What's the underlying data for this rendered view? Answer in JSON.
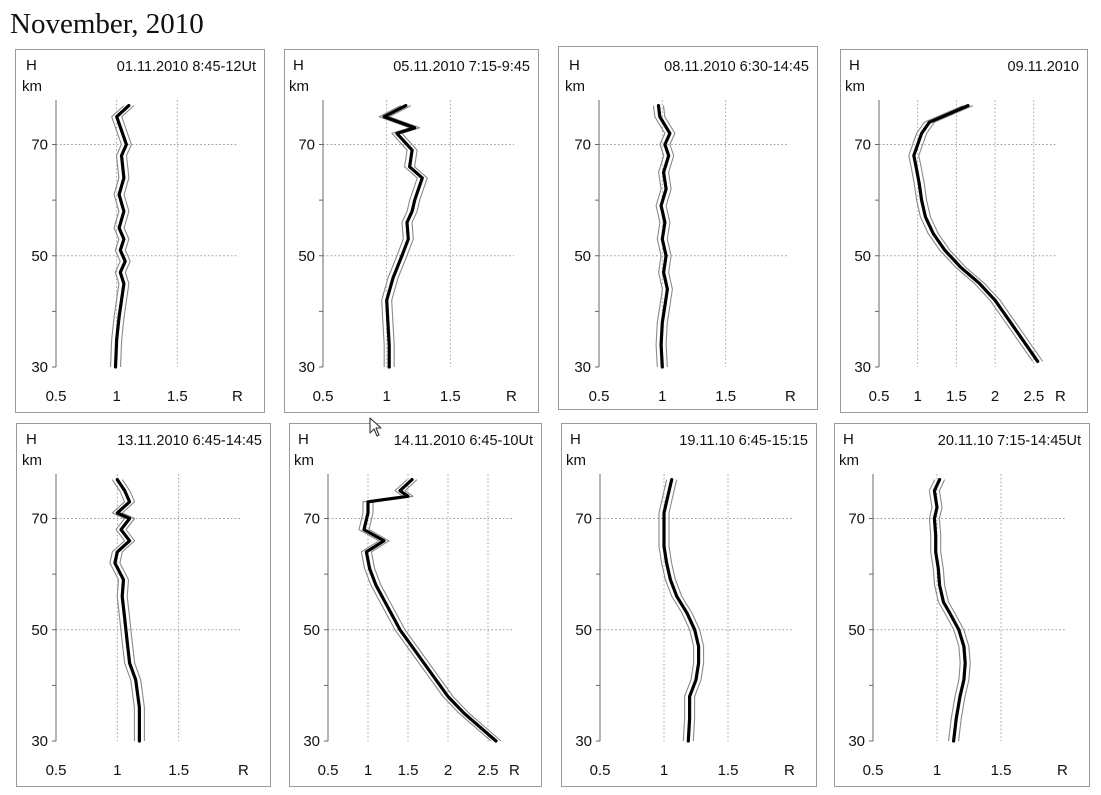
{
  "figure_title": "November, 2010",
  "chart_data": [
    {
      "type": "line",
      "title": "01.11.2010 8:45-12Ut",
      "ylabel": "H",
      "yunit": "km",
      "xlabel": "R",
      "xlim": [
        0.5,
        2.0
      ],
      "ylim": [
        30,
        78
      ],
      "xticks": [
        "0.5",
        "1",
        "1.5"
      ],
      "yticks": [
        "30",
        "50",
        "70"
      ],
      "series": [
        {
          "x": [
            1.1,
            1.0,
            1.08,
            1.04,
            1.06,
            1.02,
            1.06,
            1.02,
            1.06,
            1.03,
            1.07,
            1.03,
            1.06,
            1.04,
            1.02,
            1.0,
            0.99
          ],
          "y": [
            77,
            75,
            70,
            68,
            64,
            61,
            58,
            55,
            53,
            51,
            49,
            47,
            45,
            42,
            39,
            35,
            30
          ]
        }
      ]
    },
    {
      "type": "line",
      "title": "05.11.2010 7:15-9:45",
      "ylabel": "H",
      "yunit": "km",
      "xlabel": "R",
      "xlim": [
        0.5,
        2.0
      ],
      "ylim": [
        30,
        78
      ],
      "xticks": [
        "0.5",
        "1",
        "1.5"
      ],
      "yticks": [
        "30",
        "50",
        "70"
      ],
      "series": [
        {
          "x": [
            1.15,
            0.98,
            1.22,
            1.08,
            1.2,
            1.18,
            1.28,
            1.25,
            1.22,
            1.2,
            1.16,
            1.17,
            1.12,
            1.05,
            1.0,
            1.01,
            1.02,
            1.02
          ],
          "y": [
            77,
            75,
            73,
            72,
            69,
            66,
            64,
            62,
            60,
            58,
            56,
            53,
            50,
            46,
            42,
            38,
            34,
            30
          ]
        }
      ]
    },
    {
      "type": "line",
      "title": "08.11.2010 6:30-14:45",
      "ylabel": "H",
      "yunit": "km",
      "xlabel": "R",
      "xlim": [
        0.5,
        2.0
      ],
      "ylim": [
        30,
        78
      ],
      "xticks": [
        "0.5",
        "1",
        "1.5"
      ],
      "yticks": [
        "30",
        "50",
        "70"
      ],
      "series": [
        {
          "x": [
            0.97,
            0.98,
            1.06,
            1.02,
            1.05,
            1.01,
            1.03,
            0.99,
            1.02,
            1.0,
            1.03,
            1.01,
            1.04,
            1.02,
            1.0,
            0.99,
            1.0
          ],
          "y": [
            77,
            75,
            72,
            70,
            68,
            65,
            62,
            59,
            56,
            53,
            50,
            47,
            44,
            41,
            38,
            34,
            30
          ]
        }
      ]
    },
    {
      "type": "line",
      "title": "09.11.2010",
      "ylabel": "H",
      "yunit": "km",
      "xlabel": "R",
      "xlim": [
        0.5,
        2.8
      ],
      "ylim": [
        30,
        78
      ],
      "xticks": [
        "0.5",
        "1",
        "1.5",
        "2",
        "2.5"
      ],
      "yticks": [
        "30",
        "50",
        "70"
      ],
      "series": [
        {
          "x": [
            1.65,
            1.15,
            1.05,
            1.0,
            0.95,
            0.98,
            1.02,
            1.05,
            1.1,
            1.2,
            1.35,
            1.55,
            1.8,
            2.0,
            2.15,
            2.3,
            2.55
          ],
          "y": [
            77,
            74,
            72,
            70,
            68,
            66,
            63,
            60,
            57,
            54,
            51,
            48,
            45,
            42,
            39,
            36,
            31
          ]
        }
      ]
    },
    {
      "type": "line",
      "title": "13.11.2010 6:45-14:45",
      "ylabel": "H",
      "yunit": "km",
      "xlabel": "R",
      "xlim": [
        0.5,
        2.0
      ],
      "ylim": [
        30,
        78
      ],
      "xticks": [
        "0.5",
        "1",
        "1.5"
      ],
      "yticks": [
        "30",
        "50",
        "70"
      ],
      "series": [
        {
          "x": [
            1.0,
            1.06,
            1.1,
            1.0,
            1.1,
            1.03,
            1.1,
            1.0,
            0.98,
            1.05,
            1.04,
            1.06,
            1.08,
            1.1,
            1.15,
            1.18,
            1.18
          ],
          "y": [
            77,
            75,
            73,
            71,
            70,
            68,
            66,
            64,
            62,
            59,
            56,
            52,
            48,
            44,
            41,
            36,
            30
          ]
        }
      ]
    },
    {
      "type": "line",
      "title": "14.11.2010 6:45-10Ut",
      "ylabel": "H",
      "yunit": "km",
      "xlabel": "R",
      "xlim": [
        0.5,
        2.8
      ],
      "ylim": [
        30,
        78
      ],
      "xticks": [
        "0.5",
        "1",
        "1.5",
        "2",
        "2.5"
      ],
      "yticks": [
        "30",
        "50",
        "70"
      ],
      "series": [
        {
          "x": [
            1.55,
            1.4,
            1.5,
            1.0,
            1.0,
            0.95,
            1.2,
            0.98,
            1.02,
            1.1,
            1.25,
            1.4,
            1.6,
            1.8,
            2.0,
            2.2,
            2.6
          ],
          "y": [
            77,
            75,
            74,
            73,
            71,
            68,
            66,
            64,
            61,
            58,
            54,
            50,
            46,
            42,
            38,
            35,
            30
          ]
        }
      ]
    },
    {
      "type": "line",
      "title": "19.11.10   6:45-15:15",
      "ylabel": "H",
      "yunit": "km",
      "xlabel": "R",
      "xlim": [
        0.5,
        2.0
      ],
      "ylim": [
        30,
        78
      ],
      "xticks": [
        "0.5",
        "1",
        "1.5"
      ],
      "yticks": [
        "30",
        "50",
        "70"
      ],
      "series": [
        {
          "x": [
            1.06,
            1.03,
            1.0,
            1.0,
            1.0,
            1.02,
            1.05,
            1.1,
            1.18,
            1.24,
            1.27,
            1.27,
            1.25,
            1.2,
            1.2,
            1.19
          ],
          "y": [
            77,
            74,
            71,
            68,
            65,
            62,
            59,
            56,
            53,
            50,
            47,
            44,
            41,
            38,
            34,
            30
          ]
        }
      ]
    },
    {
      "type": "line",
      "title": "20.11.10   7:15-14:45Ut",
      "ylabel": "H",
      "yunit": "km",
      "xlabel": "R",
      "xlim": [
        0.5,
        2.0
      ],
      "ylim": [
        30,
        78
      ],
      "xticks": [
        "0.5",
        "1",
        "1.5"
      ],
      "yticks": [
        "30",
        "50",
        "70"
      ],
      "series": [
        {
          "x": [
            1.02,
            0.98,
            1.0,
            0.98,
            0.99,
            0.99,
            1.01,
            1.02,
            1.05,
            1.1,
            1.17,
            1.21,
            1.22,
            1.21,
            1.18,
            1.15,
            1.13
          ],
          "y": [
            77,
            75,
            72,
            70,
            67,
            64,
            61,
            58,
            55,
            53,
            50,
            47,
            44,
            41,
            38,
            34,
            30
          ]
        }
      ]
    }
  ]
}
